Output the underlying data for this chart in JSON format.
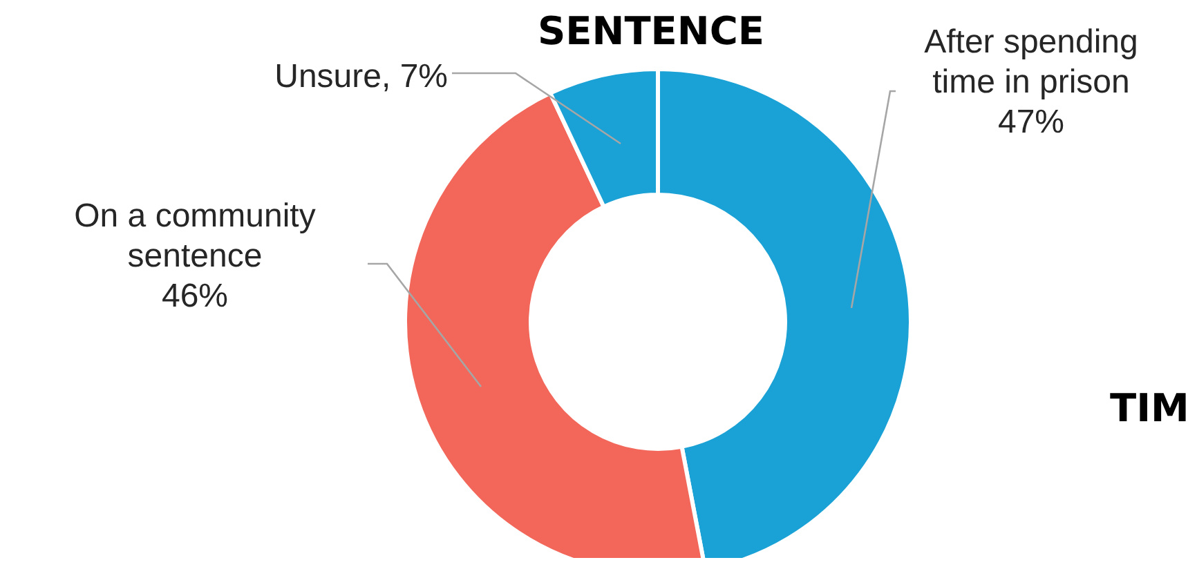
{
  "chart_data": {
    "type": "donut",
    "title": "SENTENCE",
    "categories": [
      "After spending time in prison",
      "On a community sentence",
      "Unsure, 7%"
    ],
    "value_labels": [
      "47%",
      "46%",
      null
    ],
    "values": [
      47,
      46,
      7
    ],
    "colors": [
      "#1aa1d5",
      "#f2675a",
      "#1aa1d5"
    ],
    "annotations": [
      "TIM"
    ]
  }
}
